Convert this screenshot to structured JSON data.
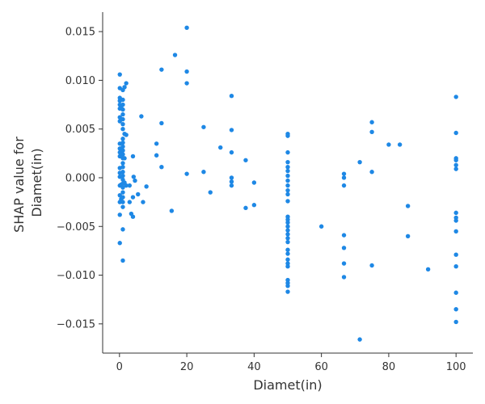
{
  "chart_data": {
    "type": "scatter",
    "title": "",
    "xlabel": "Diamet(in)",
    "ylabel_lines": [
      "SHAP value for",
      "Diamet(in)"
    ],
    "xlim": [
      -5,
      105
    ],
    "ylim": [
      -0.018,
      0.017
    ],
    "x_ticks": [
      0,
      20,
      40,
      60,
      80,
      100
    ],
    "x_tick_labels": [
      "0",
      "20",
      "40",
      "60",
      "80",
      "100"
    ],
    "y_ticks": [
      -0.015,
      -0.01,
      -0.005,
      0.0,
      0.005,
      0.01,
      0.015
    ],
    "y_tick_labels": [
      "−0.015",
      "−0.010",
      "−0.005",
      "0.000",
      "0.005",
      "0.010",
      "0.015"
    ],
    "grid": false,
    "marker_color": "#1e88e5",
    "points": [
      [
        0.1,
        0.0106
      ],
      [
        0.1,
        0.0092
      ],
      [
        0.1,
        0.0082
      ],
      [
        0.1,
        0.0079
      ],
      [
        0.1,
        0.0075
      ],
      [
        0.1,
        0.0071
      ],
      [
        0.1,
        0.0062
      ],
      [
        0.1,
        0.0058
      ],
      [
        0.1,
        0.0035
      ],
      [
        0.1,
        0.003
      ],
      [
        0.1,
        0.0026
      ],
      [
        0.1,
        0.0022
      ],
      [
        0.1,
        0.001
      ],
      [
        0.1,
        0.0005
      ],
      [
        0.1,
        0.0001
      ],
      [
        0.1,
        -0.0008
      ],
      [
        0.1,
        -0.0018
      ],
      [
        0.1,
        -0.0025
      ],
      [
        0.1,
        -0.0038
      ],
      [
        0.1,
        -0.0067
      ],
      [
        0.5,
        0.0072
      ],
      [
        0.5,
        0.006
      ],
      [
        0.5,
        0.0029
      ],
      [
        0.5,
        0.0025
      ],
      [
        0.5,
        -0.0007
      ],
      [
        0.5,
        -0.0022
      ],
      [
        1.0,
        0.009
      ],
      [
        1.0,
        0.008
      ],
      [
        1.0,
        0.0075
      ],
      [
        1.0,
        0.007
      ],
      [
        1.0,
        0.0065
      ],
      [
        1.0,
        0.006
      ],
      [
        1.0,
        0.0055
      ],
      [
        1.0,
        0.005
      ],
      [
        1.0,
        0.004
      ],
      [
        1.0,
        0.0036
      ],
      [
        1.0,
        0.0032
      ],
      [
        1.0,
        0.0028
      ],
      [
        1.0,
        0.0024
      ],
      [
        1.0,
        0.002
      ],
      [
        1.0,
        0.0015
      ],
      [
        1.0,
        0.0011
      ],
      [
        1.0,
        0.0006
      ],
      [
        1.0,
        0.0002
      ],
      [
        1.0,
        -0.0002
      ],
      [
        1.0,
        -0.0006
      ],
      [
        1.0,
        -0.001
      ],
      [
        1.0,
        -0.0015
      ],
      [
        1.0,
        -0.002
      ],
      [
        1.0,
        -0.0025
      ],
      [
        1.0,
        -0.003
      ],
      [
        1.0,
        -0.0053
      ],
      [
        1.0,
        -0.0085
      ],
      [
        1.5,
        0.0093
      ],
      [
        1.5,
        0.0045
      ],
      [
        1.5,
        0.002
      ],
      [
        1.5,
        -0.0005
      ],
      [
        2.0,
        0.0097
      ],
      [
        2.0,
        0.0044
      ],
      [
        2.0,
        -0.0008
      ],
      [
        3.0,
        -0.0008
      ],
      [
        3.0,
        -0.0025
      ],
      [
        3.5,
        -0.0037
      ],
      [
        4.0,
        -0.002
      ],
      [
        4.0,
        -0.004
      ],
      [
        4.0,
        0.0022
      ],
      [
        4.2,
        0.0001
      ],
      [
        4.6,
        -0.0003
      ],
      [
        5.5,
        -0.0017
      ],
      [
        6.5,
        0.0063
      ],
      [
        7.0,
        -0.0025
      ],
      [
        8.0,
        -0.0009
      ],
      [
        11.0,
        0.0035
      ],
      [
        11.0,
        0.0023
      ],
      [
        12.5,
        0.0111
      ],
      [
        12.5,
        0.0056
      ],
      [
        12.5,
        0.0011
      ],
      [
        15.5,
        -0.0034
      ],
      [
        16.5,
        0.0126
      ],
      [
        20.0,
        0.0154
      ],
      [
        20.0,
        0.0109
      ],
      [
        20.0,
        0.0097
      ],
      [
        20.0,
        0.0004
      ],
      [
        25.0,
        0.0052
      ],
      [
        25.0,
        0.0006
      ],
      [
        27.0,
        -0.0015
      ],
      [
        30.0,
        0.0031
      ],
      [
        33.3,
        0.0084
      ],
      [
        33.3,
        0.0049
      ],
      [
        33.3,
        0.0026
      ],
      [
        33.3,
        0.0
      ],
      [
        33.3,
        -0.0004
      ],
      [
        33.3,
        -0.0008
      ],
      [
        37.5,
        0.0018
      ],
      [
        37.5,
        -0.0031
      ],
      [
        40.0,
        -0.0005
      ],
      [
        40.0,
        -0.0028
      ],
      [
        50.0,
        0.0045
      ],
      [
        50.0,
        0.0043
      ],
      [
        50.0,
        0.0026
      ],
      [
        50.0,
        0.0016
      ],
      [
        50.0,
        0.0011
      ],
      [
        50.0,
        0.0007
      ],
      [
        50.0,
        0.0002
      ],
      [
        50.0,
        -0.0003
      ],
      [
        50.0,
        -0.0008
      ],
      [
        50.0,
        -0.0013
      ],
      [
        50.0,
        -0.0017
      ],
      [
        50.0,
        -0.0024
      ],
      [
        50.0,
        -0.004
      ],
      [
        50.0,
        -0.0043
      ],
      [
        50.0,
        -0.0046
      ],
      [
        50.0,
        -0.005
      ],
      [
        50.0,
        -0.0054
      ],
      [
        50.0,
        -0.0058
      ],
      [
        50.0,
        -0.0062
      ],
      [
        50.0,
        -0.0066
      ],
      [
        50.0,
        -0.0074
      ],
      [
        50.0,
        -0.0078
      ],
      [
        50.0,
        -0.0084
      ],
      [
        50.0,
        -0.0088
      ],
      [
        50.0,
        -0.0091
      ],
      [
        50.0,
        -0.0105
      ],
      [
        50.0,
        -0.0108
      ],
      [
        50.0,
        -0.0111
      ],
      [
        50.0,
        -0.0117
      ],
      [
        60.0,
        -0.005
      ],
      [
        66.7,
        0.0004
      ],
      [
        66.7,
        0.0
      ],
      [
        66.7,
        -0.0008
      ],
      [
        66.7,
        -0.0059
      ],
      [
        66.7,
        -0.0072
      ],
      [
        66.7,
        -0.0088
      ],
      [
        66.7,
        -0.0102
      ],
      [
        71.4,
        0.0016
      ],
      [
        71.4,
        -0.0166
      ],
      [
        75.0,
        0.0057
      ],
      [
        75.0,
        0.0047
      ],
      [
        75.0,
        0.0006
      ],
      [
        75.0,
        -0.009
      ],
      [
        80.0,
        0.0034
      ],
      [
        83.3,
        0.0034
      ],
      [
        85.7,
        -0.0029
      ],
      [
        85.7,
        -0.006
      ],
      [
        91.7,
        -0.0094
      ],
      [
        100.0,
        0.0083
      ],
      [
        100.0,
        0.0046
      ],
      [
        100.0,
        0.002
      ],
      [
        100.0,
        0.0018
      ],
      [
        100.0,
        0.0013
      ],
      [
        100.0,
        0.0009
      ],
      [
        100.0,
        -0.0036
      ],
      [
        100.0,
        -0.0041
      ],
      [
        100.0,
        -0.0044
      ],
      [
        100.0,
        -0.0055
      ],
      [
        100.0,
        -0.0079
      ],
      [
        100.0,
        -0.0091
      ],
      [
        100.0,
        -0.0118
      ],
      [
        100.0,
        -0.0135
      ],
      [
        100.0,
        -0.0148
      ]
    ]
  }
}
